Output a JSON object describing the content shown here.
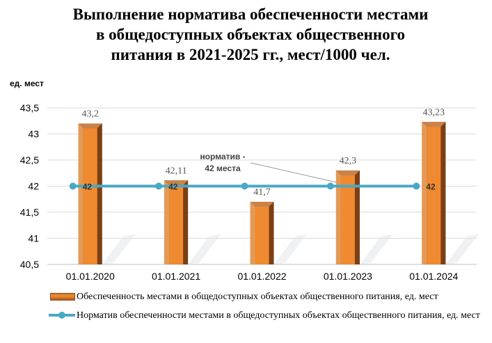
{
  "title_lines": [
    "Выполнение норматива обеспеченности местами",
    "в общедоступных объектах общественного",
    "питания в 2021-2025 гг., мест/1000 чел."
  ],
  "colors": {
    "bar": "#f08a30",
    "bar_dark": "#8a4b1a",
    "line": "#4aa8c4",
    "grid": "#d9d9d9"
  },
  "chart_data": {
    "type": "bar",
    "title": "Выполнение норматива обеспеченности местами в общедоступных объектах общественного питания в 2021-2025 гг., мест/1000 чел.",
    "ylabel": "ед. мест",
    "categories": [
      "01.01.2020",
      "01.01.2021",
      "01.01.2022",
      "01.01.2023",
      "01.01.2024"
    ],
    "ylim": [
      40.5,
      43.5
    ],
    "yticks": [
      "40,5",
      "41",
      "41,5",
      "42",
      "42,5",
      "43",
      "43,5"
    ],
    "ytick_values": [
      40.5,
      41,
      41.5,
      42,
      42.5,
      43,
      43.5
    ],
    "grid": true,
    "legend_position": "bottom",
    "series": [
      {
        "name": "Обеспеченность местами в общедоступных объектах общественного питания, ед. мест",
        "type": "bar",
        "values": [
          43.2,
          42.11,
          41.7,
          42.3,
          43.23
        ],
        "labels": [
          "43,2",
          "42,11",
          "41,7",
          "42,3",
          "43,23"
        ]
      },
      {
        "name": "Норматив обеспеченности местами в общедоступных объектах общественного питания, ед. мест",
        "type": "line",
        "values": [
          42,
          42,
          42,
          42,
          42
        ],
        "labels": [
          "42",
          "42",
          "",
          "",
          "42"
        ]
      }
    ],
    "annotation": {
      "line1": "норматив -",
      "line2": "42 места"
    }
  }
}
